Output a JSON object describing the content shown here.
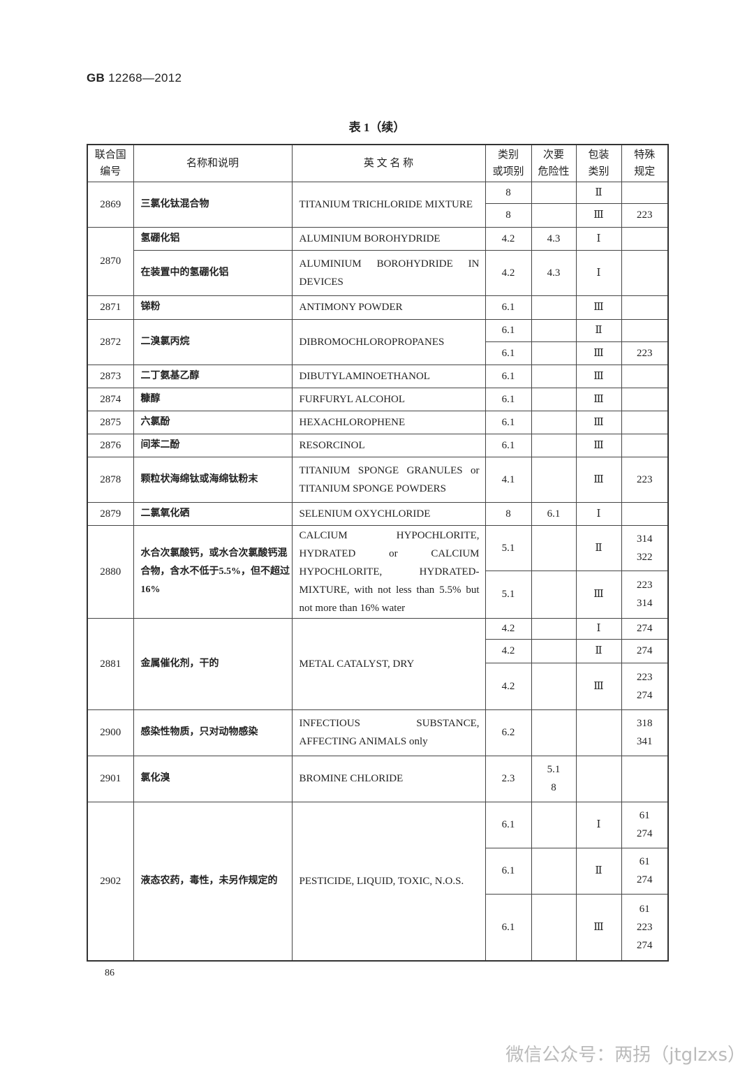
{
  "header": {
    "standard_prefix": "GB",
    "standard_number": "12268—2012"
  },
  "caption": "表 1（续）",
  "columns": {
    "un": "联合国\n编号",
    "cn": "名称和说明",
    "en": "英 文 名 称",
    "class": "类别\n或项别",
    "secondary": "次要\n危险性",
    "packing": "包装\n类别",
    "special": "特殊\n规定"
  },
  "entries": [
    {
      "un": "2869",
      "cn": "三氯化钛混合物",
      "en": "TITANIUM TRICHLORIDE MIXTURE",
      "subs": [
        {
          "class": "8",
          "secondary": "",
          "packing": "Ⅱ",
          "special": ""
        },
        {
          "class": "8",
          "secondary": "",
          "packing": "Ⅲ",
          "special": "223"
        }
      ]
    },
    {
      "un": "2870",
      "subs": [
        {
          "cn": "氢硼化铝",
          "en": "ALUMINIUM BOROHYDRIDE",
          "class": "4.2",
          "secondary": "4.3",
          "packing": "Ⅰ",
          "special": ""
        },
        {
          "cn": "在装置中的氢硼化铝",
          "en": "ALUMINIUM BOROHYDRIDE IN DEVICES",
          "class": "4.2",
          "secondary": "4.3",
          "packing": "Ⅰ",
          "special": ""
        }
      ]
    },
    {
      "un": "2871",
      "cn": "锑粉",
      "en": "ANTIMONY POWDER",
      "subs": [
        {
          "class": "6.1",
          "secondary": "",
          "packing": "Ⅲ",
          "special": ""
        }
      ]
    },
    {
      "un": "2872",
      "cn": "二溴氯丙烷",
      "en": "DIBROMOCHLOROPROPANES",
      "subs": [
        {
          "class": "6.1",
          "secondary": "",
          "packing": "Ⅱ",
          "special": ""
        },
        {
          "class": "6.1",
          "secondary": "",
          "packing": "Ⅲ",
          "special": "223"
        }
      ]
    },
    {
      "un": "2873",
      "cn": "二丁氨基乙醇",
      "en": "DIBUTYLAMINOETHANOL",
      "subs": [
        {
          "class": "6.1",
          "secondary": "",
          "packing": "Ⅲ",
          "special": ""
        }
      ]
    },
    {
      "un": "2874",
      "cn": "糠醇",
      "en": "FURFURYL ALCOHOL",
      "subs": [
        {
          "class": "6.1",
          "secondary": "",
          "packing": "Ⅲ",
          "special": ""
        }
      ]
    },
    {
      "un": "2875",
      "cn": "六氯酚",
      "en": "HEXACHLOROPHENE",
      "subs": [
        {
          "class": "6.1",
          "secondary": "",
          "packing": "Ⅲ",
          "special": ""
        }
      ]
    },
    {
      "un": "2876",
      "cn": "间苯二酚",
      "en": "RESORCINOL",
      "subs": [
        {
          "class": "6.1",
          "secondary": "",
          "packing": "Ⅲ",
          "special": ""
        }
      ]
    },
    {
      "un": "2878",
      "cn": "颗粒状海绵钛或海绵钛粉末",
      "en": "TITANIUM SPONGE GRANULES or TITANIUM SPONGE POWDERS",
      "subs": [
        {
          "class": "4.1",
          "secondary": "",
          "packing": "Ⅲ",
          "special": "223"
        }
      ]
    },
    {
      "un": "2879",
      "cn": "二氯氧化硒",
      "en": "SELENIUM OXYCHLORIDE",
      "subs": [
        {
          "class": "8",
          "secondary": "6.1",
          "packing": "Ⅰ",
          "special": ""
        }
      ]
    },
    {
      "un": "2880",
      "cn": "水合次氯酸钙，或水合次氯酸钙混合物，含水不低于5.5%，但不超过16%",
      "en": "CALCIUM HYPOCHLORITE, HYDRATED or CALCIUM HYPOCHLORITE, HYDRATED-MIXTURE, with not less than 5.5% but not more than 16% water",
      "subs": [
        {
          "class": "5.1",
          "secondary": "",
          "packing": "Ⅱ",
          "special": "314\n322"
        },
        {
          "class": "5.1",
          "secondary": "",
          "packing": "Ⅲ",
          "special": "223\n314"
        }
      ]
    },
    {
      "un": "2881",
      "cn": "金属催化剂，干的",
      "en": "METAL CATALYST, DRY",
      "subs": [
        {
          "class": "4.2",
          "secondary": "",
          "packing": "Ⅰ",
          "special": "274"
        },
        {
          "class": "4.2",
          "secondary": "",
          "packing": "Ⅱ",
          "special": "274"
        },
        {
          "class": "4.2",
          "secondary": "",
          "packing": "Ⅲ",
          "special": "223\n274"
        }
      ]
    },
    {
      "un": "2900",
      "cn": "感染性物质，只对动物感染",
      "en": "INFECTIOUS SUBSTANCE, AFFECTING ANIMALS only",
      "subs": [
        {
          "class": "6.2",
          "secondary": "",
          "packing": "",
          "special": "318\n341"
        }
      ]
    },
    {
      "un": "2901",
      "cn": "氯化溴",
      "en": "BROMINE CHLORIDE",
      "subs": [
        {
          "class": "2.3",
          "secondary": "5.1\n8",
          "packing": "",
          "special": ""
        }
      ]
    },
    {
      "un": "2902",
      "cn": "液态农药，毒性，未另作规定的",
      "en": "PESTICIDE, LIQUID, TOXIC, N.O.S.",
      "subs": [
        {
          "class": "6.1",
          "secondary": "",
          "packing": "Ⅰ",
          "special": "61\n274"
        },
        {
          "class": "6.1",
          "secondary": "",
          "packing": "Ⅱ",
          "special": "61\n274"
        },
        {
          "class": "6.1",
          "secondary": "",
          "packing": "Ⅲ",
          "special": "61\n223\n274"
        }
      ]
    }
  ],
  "page_number": "86",
  "watermark": "微信公众号：两拐（jtglzxs）"
}
